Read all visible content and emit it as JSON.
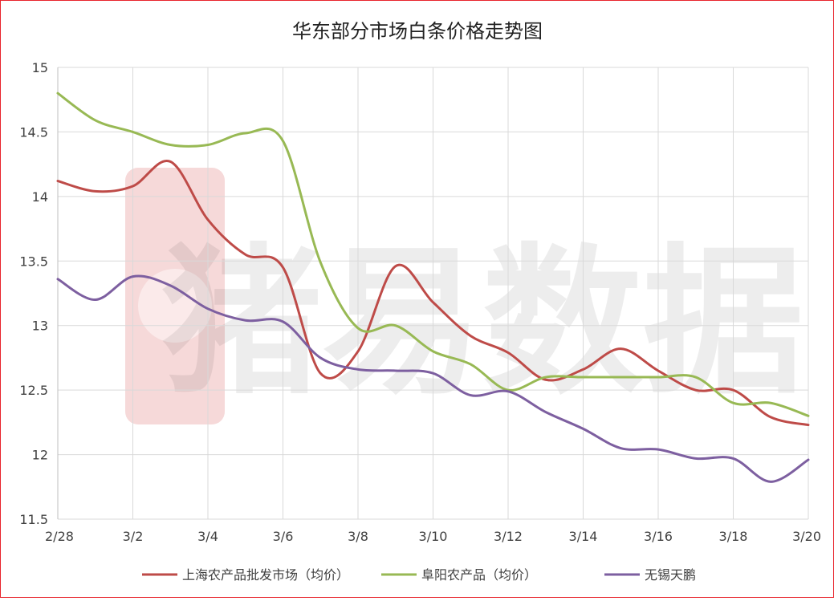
{
  "chart_data": {
    "type": "line",
    "title": "华东部分市场白条价格走势图",
    "x": [
      "2/28",
      "3/1",
      "3/2",
      "3/3",
      "3/4",
      "3/5",
      "3/6",
      "3/7",
      "3/8",
      "3/9",
      "3/10",
      "3/11",
      "3/12",
      "3/13",
      "3/14",
      "3/15",
      "3/16",
      "3/17",
      "3/18",
      "3/19",
      "3/20"
    ],
    "x_tick_labels": [
      "2/28",
      "3/2",
      "3/4",
      "3/6",
      "3/8",
      "3/10",
      "3/12",
      "3/14",
      "3/16",
      "3/18",
      "3/20"
    ],
    "ylim": [
      11.5,
      15
    ],
    "y_ticks": [
      11.5,
      12,
      12.5,
      13,
      13.5,
      14,
      14.5,
      15
    ],
    "grid": true,
    "legend_position": "bottom",
    "watermark": "猪易数据",
    "series": [
      {
        "name": "上海农产品批发市场（均价）",
        "color": "#be4b48",
        "values": [
          14.12,
          14.04,
          14.08,
          14.27,
          13.82,
          13.55,
          13.45,
          12.63,
          12.8,
          13.46,
          13.18,
          12.92,
          12.79,
          12.58,
          12.66,
          12.82,
          12.65,
          12.5,
          12.5,
          12.29,
          12.23
        ]
      },
      {
        "name": "阜阳农产品（均价）",
        "color": "#98b954",
        "values": [
          14.8,
          14.59,
          14.5,
          14.4,
          14.4,
          14.49,
          14.43,
          13.49,
          12.98,
          13.0,
          12.8,
          12.7,
          12.5,
          12.6,
          12.6,
          12.6,
          12.6,
          12.6,
          12.4,
          12.4,
          12.3
        ]
      },
      {
        "name": "无锡天鹏",
        "color": "#7d5fa0",
        "values": [
          13.36,
          13.2,
          13.38,
          13.31,
          13.13,
          13.04,
          13.03,
          12.75,
          12.66,
          12.65,
          12.63,
          12.46,
          12.49,
          12.33,
          12.2,
          12.05,
          12.04,
          11.97,
          11.97,
          11.79,
          11.96
        ]
      }
    ]
  }
}
